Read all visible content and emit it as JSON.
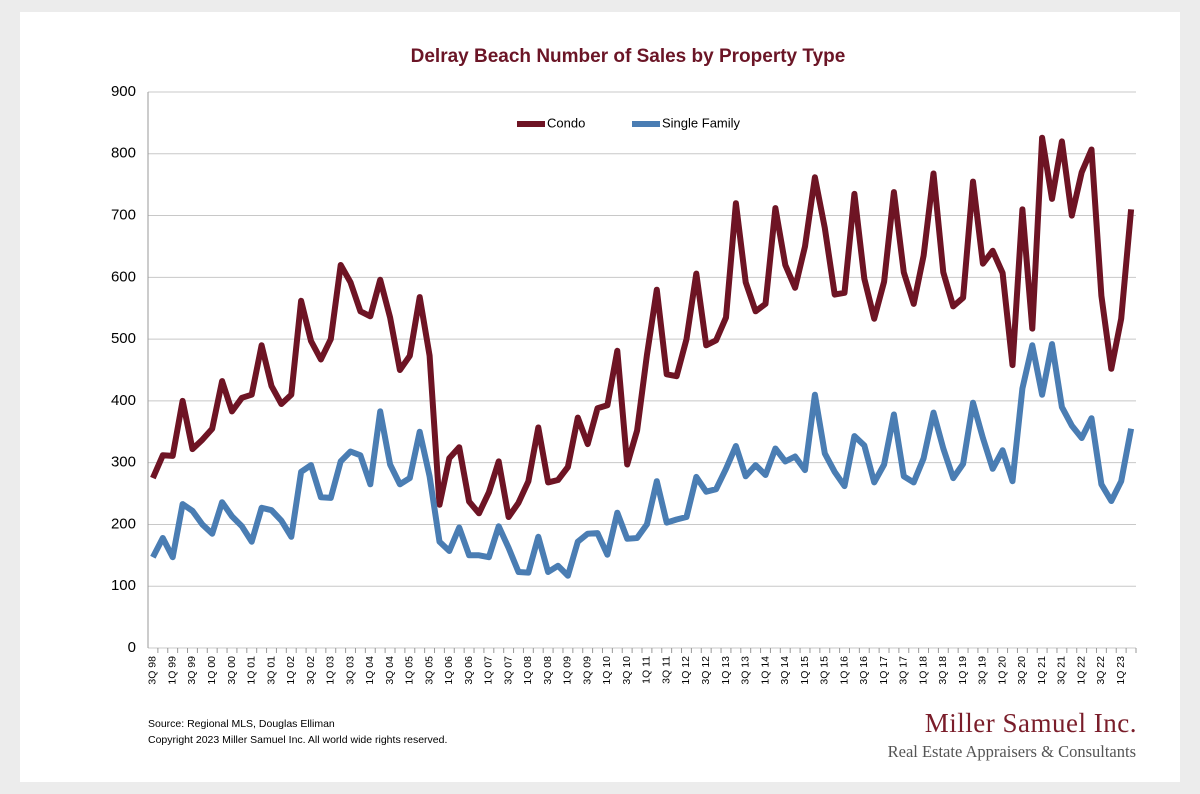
{
  "chart_data": {
    "type": "line",
    "title": "Delray Beach Number of Sales by Property Type",
    "categories": [
      "3Q 98",
      null,
      "1Q 99",
      null,
      "3Q 99",
      null,
      "1Q 00",
      null,
      "3Q 00",
      null,
      "1Q 01",
      null,
      "3Q 01",
      null,
      "1Q 02",
      null,
      "3Q 02",
      null,
      "1Q 03",
      null,
      "3Q 03",
      null,
      "1Q 04",
      null,
      "3Q 04",
      null,
      "1Q 05",
      null,
      "3Q 05",
      null,
      "1Q 06",
      null,
      "3Q 06",
      null,
      "1Q 07",
      null,
      "3Q 07",
      null,
      "1Q 08",
      null,
      "3Q 08",
      null,
      "1Q 09",
      null,
      "3Q 09",
      null,
      "1Q 10",
      null,
      "3Q 10",
      null,
      "1Q 11",
      null,
      "3Q 11",
      null,
      "1Q 12",
      null,
      "3Q 12",
      null,
      "1Q 13",
      null,
      "3Q 13",
      null,
      "1Q 14",
      null,
      "3Q 14",
      null,
      "1Q 15",
      null,
      "3Q 15",
      null,
      "1Q 16",
      null,
      "3Q 16",
      null,
      "1Q 17",
      null,
      "3Q 17",
      null,
      "1Q 18",
      null,
      "3Q 18",
      null,
      "1Q 19",
      null,
      "3Q 19",
      null,
      "1Q 20",
      null,
      "3Q 20",
      null,
      "1Q 21",
      null,
      "3Q 21",
      null,
      "1Q 22",
      null,
      "3Q 22",
      null,
      "1Q 23",
      null
    ],
    "series": [
      {
        "name": "Condo",
        "color": "#6e1424",
        "values": [
          275,
          312,
          311,
          400,
          322,
          337,
          355,
          432,
          383,
          405,
          410,
          490,
          424,
          395,
          410,
          562,
          497,
          467,
          500,
          620,
          592,
          545,
          537,
          596,
          535,
          450,
          473,
          568,
          473,
          232,
          307,
          325,
          237,
          218,
          252,
          302,
          212,
          235,
          270,
          357,
          268,
          272,
          293,
          373,
          330,
          388,
          393,
          481,
          297,
          352,
          474,
          580,
          443,
          440,
          500,
          606,
          490,
          498,
          535,
          720,
          592,
          545,
          557,
          712,
          620,
          583,
          650,
          762,
          680,
          572,
          575,
          735,
          598,
          533,
          593,
          738,
          608,
          557,
          635,
          768,
          608,
          553,
          567,
          755,
          622,
          643,
          607,
          458,
          710,
          517,
          826,
          727,
          820,
          700,
          770,
          807,
          570,
          452,
          533,
          710
        ]
      },
      {
        "name": "Single Family",
        "color": "#4a7db3",
        "values": [
          147,
          178,
          147,
          233,
          222,
          200,
          185,
          236,
          213,
          197,
          172,
          227,
          223,
          206,
          180,
          285,
          296,
          244,
          243,
          302,
          318,
          312,
          265,
          383,
          297,
          265,
          275,
          350,
          278,
          172,
          157,
          195,
          150,
          150,
          147,
          197,
          162,
          123,
          122,
          180,
          123,
          133,
          117,
          172,
          185,
          186,
          151,
          219,
          177,
          178,
          200,
          270,
          203,
          208,
          212,
          277,
          253,
          257,
          290,
          327,
          278,
          296,
          280,
          323,
          302,
          310,
          288,
          410,
          315,
          285,
          262,
          343,
          328,
          268,
          297,
          378,
          278,
          268,
          307,
          381,
          323,
          275,
          298,
          397,
          340,
          290,
          320,
          270,
          420,
          490,
          410,
          492,
          390,
          360,
          340,
          372,
          265,
          238,
          270,
          355
        ]
      }
    ],
    "ylim": [
      0,
      900
    ],
    "yticks": [
      0,
      100,
      200,
      300,
      400,
      500,
      600,
      700,
      800,
      900
    ],
    "grid": true,
    "legend": "top"
  },
  "footer": {
    "source": "Source: Regional MLS, Douglas Elliman",
    "copyright": "Copyright 2023 Miller Samuel Inc.  All world wide rights reserved.",
    "logo_name": "Miller Samuel Inc.",
    "logo_tagline": "Real Estate Appraisers & Consultants"
  }
}
